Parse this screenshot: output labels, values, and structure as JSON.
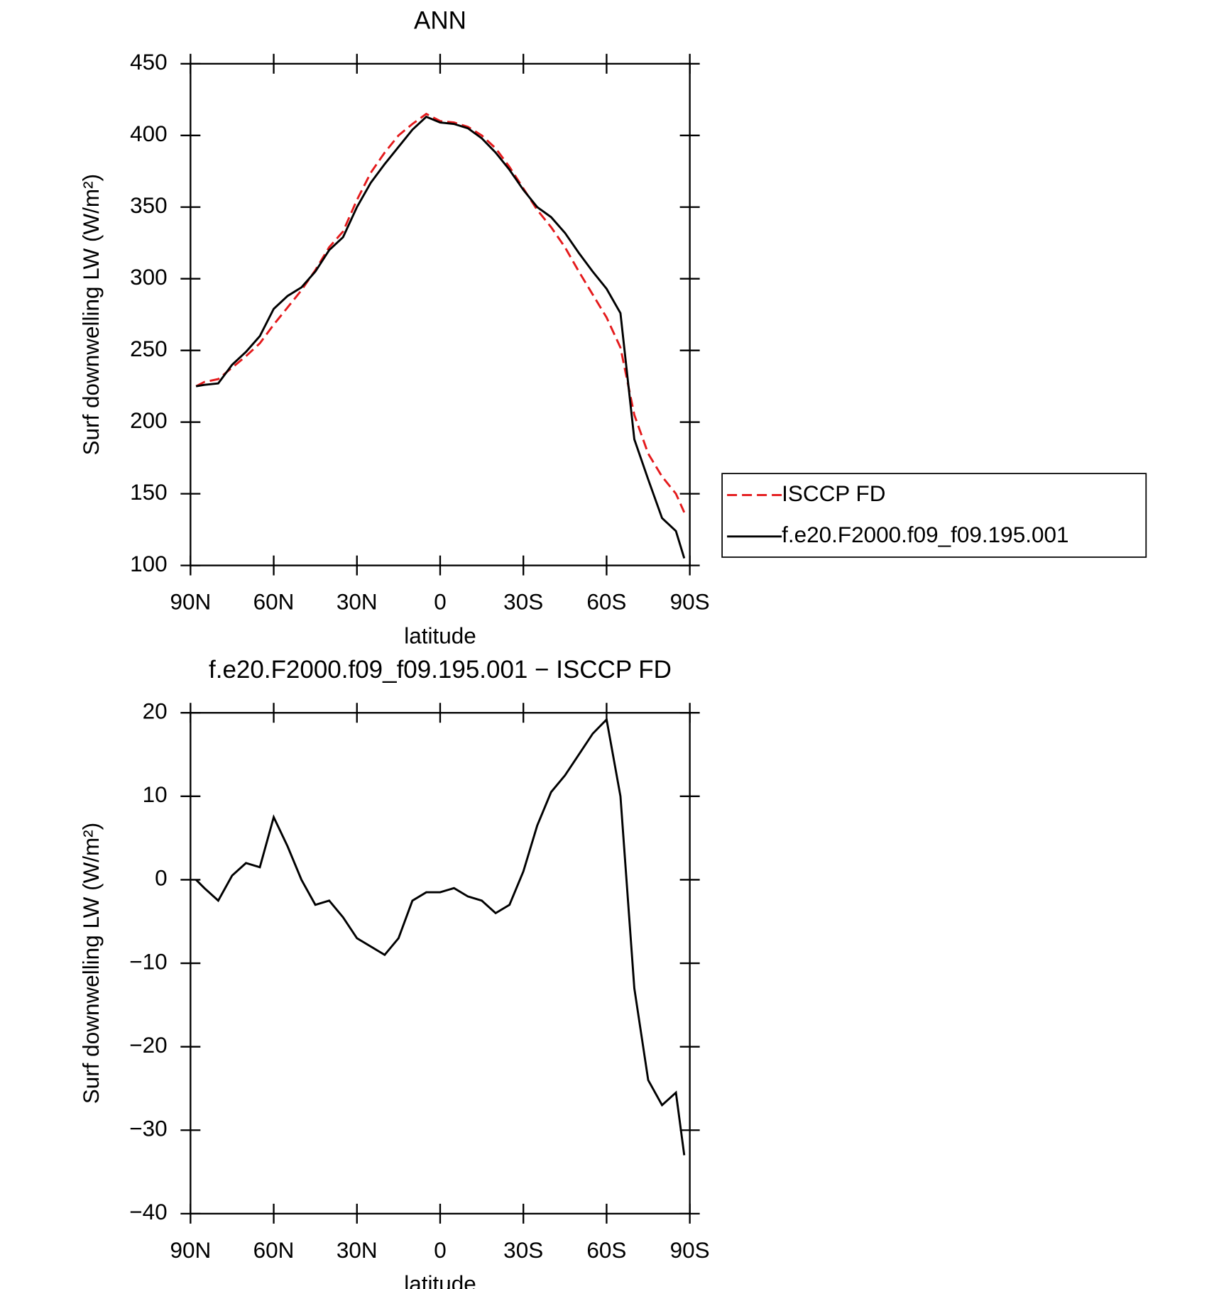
{
  "chart_data": [
    {
      "type": "line",
      "title": "ANN",
      "xlabel": "latitude",
      "ylabel": "Surf downwelling LW (W/m²)",
      "x": [
        88,
        85,
        80,
        75,
        70,
        65,
        60,
        55,
        50,
        45,
        40,
        35,
        30,
        25,
        20,
        15,
        10,
        5,
        0,
        -5,
        -10,
        -15,
        -20,
        -25,
        -30,
        -35,
        -40,
        -45,
        -50,
        -55,
        -60,
        -65,
        -70,
        -75,
        -80,
        -85,
        -88
      ],
      "series": [
        {
          "name": "ISCCP FD",
          "color": "#e41a1c",
          "style": "dashed",
          "values": [
            225,
            228,
            230,
            238,
            246,
            255,
            268,
            280,
            292,
            306,
            322,
            333,
            355,
            374,
            388,
            400,
            408,
            415,
            410,
            409,
            406,
            400,
            391,
            378,
            363,
            348,
            336,
            322,
            305,
            289,
            273,
            252,
            205,
            178,
            162,
            150,
            137
          ]
        },
        {
          "name": "f.e20.F2000.f09_f09.195.001",
          "color": "#000000",
          "style": "solid",
          "values": [
            225,
            226,
            227,
            240,
            249,
            260,
            279,
            288,
            294,
            305,
            320,
            329,
            350,
            367,
            380,
            392,
            404,
            413,
            409,
            408,
            405,
            398,
            388,
            376,
            362,
            350,
            343,
            332,
            318,
            305,
            293,
            276,
            188,
            160,
            133,
            124,
            105
          ]
        }
      ],
      "xlim": [
        90,
        -90
      ],
      "xticks": [
        {
          "value": 90,
          "label": "90N"
        },
        {
          "value": 60,
          "label": "60N"
        },
        {
          "value": 30,
          "label": "30N"
        },
        0,
        {
          "value": -30,
          "label": "30S"
        },
        {
          "value": -60,
          "label": "60S"
        },
        {
          "value": -90,
          "label": "90S"
        }
      ],
      "ylim": [
        100,
        450
      ],
      "yticks": [
        100,
        150,
        200,
        250,
        300,
        350,
        400,
        450
      ],
      "legend": "outside right"
    },
    {
      "type": "line",
      "title": "f.e20.F2000.f09_f09.195.001 − ISCCP FD",
      "xlabel": "latitude",
      "ylabel": "Surf downwelling LW (W/m²)",
      "x": [
        88,
        85,
        80,
        75,
        70,
        65,
        60,
        55,
        50,
        45,
        40,
        35,
        30,
        25,
        20,
        15,
        10,
        5,
        0,
        -5,
        -10,
        -15,
        -20,
        -25,
        -30,
        -35,
        -40,
        -45,
        -50,
        -55,
        -60,
        -65,
        -70,
        -75,
        -80,
        -85,
        -88
      ],
      "series": [
        {
          "color": "#000000",
          "style": "solid",
          "values": [
            0,
            -1,
            -2.5,
            0.5,
            2,
            1.5,
            7.5,
            4,
            0,
            -3,
            -2.5,
            -4.5,
            -7,
            -8,
            -9,
            -7,
            -2.5,
            -1.5,
            -1.5,
            -1,
            -2,
            -2.5,
            -4,
            -3,
            1,
            6.5,
            10.5,
            12.5,
            15,
            17.5,
            19.2,
            10,
            -13,
            -24,
            -27,
            -25.5,
            -33
          ]
        }
      ],
      "xlim": [
        90,
        -90
      ],
      "xticks": [
        {
          "value": 90,
          "label": "90N"
        },
        {
          "value": 60,
          "label": "60N"
        },
        {
          "value": 30,
          "label": "30N"
        },
        0,
        {
          "value": -30,
          "label": "30S"
        },
        {
          "value": -60,
          "label": "60S"
        },
        {
          "value": -90,
          "label": "90S"
        }
      ],
      "ylim": [
        -40,
        20
      ],
      "yticks": [
        {
          "value": -40,
          "label": "−40"
        },
        {
          "value": -30,
          "label": "−30"
        },
        {
          "value": -20,
          "label": "−20"
        },
        {
          "value": -10,
          "label": "−10"
        },
        0,
        10,
        20
      ]
    }
  ]
}
